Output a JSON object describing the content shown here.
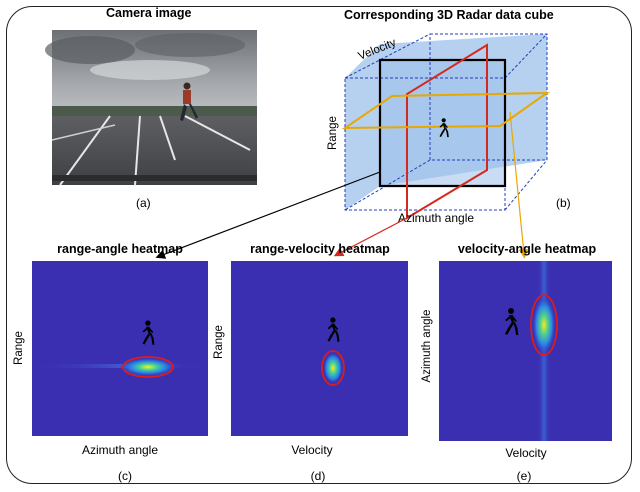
{
  "camera": {
    "title": "Camera image",
    "caption": "(a)"
  },
  "cube": {
    "title": "Corresponding 3D Radar data cube",
    "caption": "(b)",
    "axis_velocity": "Velocity",
    "axis_range": "Range",
    "axis_azimuth": "Azimuth angle"
  },
  "heatmaps": [
    {
      "title": "range-angle heatmap",
      "xlabel": "Azimuth angle",
      "ylabel": "Range",
      "caption": "(c)"
    },
    {
      "title": "range-velocity heatmap",
      "xlabel": "Velocity",
      "ylabel": "Range",
      "caption": "(d)"
    },
    {
      "title": "velocity-angle heatmap",
      "xlabel": "Velocity",
      "ylabel": "Azimuth angle",
      "caption": "(e)"
    }
  ],
  "colors": {
    "heatmap_bg": "#3a2fb0",
    "cube_fill": "#a9c8ec",
    "cube_edge": "#1f3fbf",
    "slice_range_angle": "#e8a800",
    "slice_range_velocity": "#d42a1e",
    "arrow_black": "#000000",
    "ellipse_red": "#d81e1e"
  },
  "icons": [
    "pedestrian-icon"
  ]
}
